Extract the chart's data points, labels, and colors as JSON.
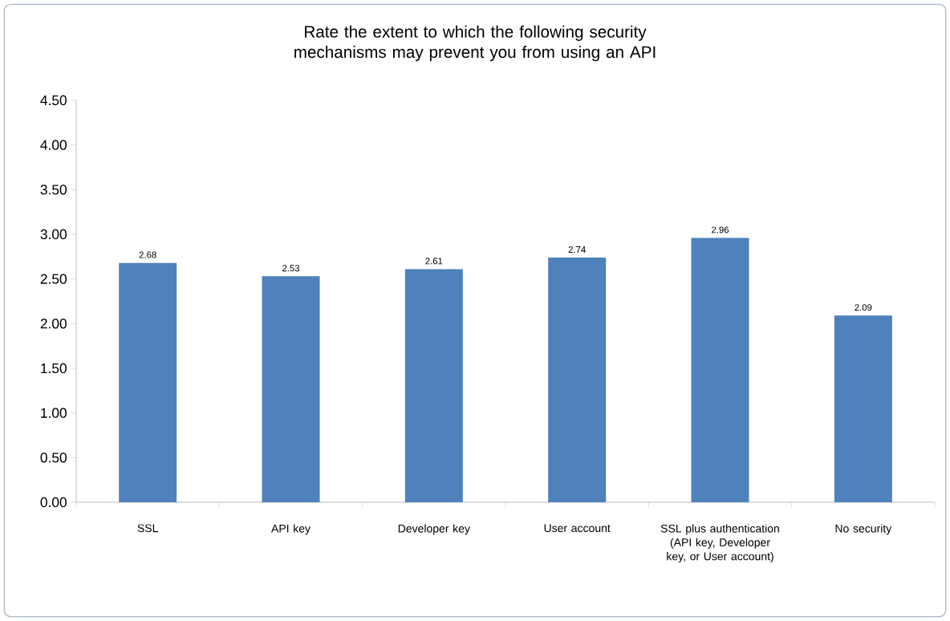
{
  "chart_data": {
    "type": "bar",
    "title": "Rate the extent to which the following security mechanisms may prevent you from using an API",
    "categories": [
      "SSL",
      "API key",
      "Developer key",
      "User account",
      "SSL plus authentication (API key, Developer key, or User account)",
      "No security"
    ],
    "values": [
      2.68,
      2.53,
      2.61,
      2.74,
      2.96,
      2.09
    ],
    "color": "#4f81bd",
    "ylim": [
      0,
      4.5
    ],
    "yticks": [
      {
        "value": 0,
        "label": "0.00"
      },
      {
        "value": 0.5,
        "label": "0.50"
      },
      {
        "value": 1,
        "label": "1.00"
      },
      {
        "value": 1.5,
        "label": "1.50"
      },
      {
        "value": 2,
        "label": "2.00"
      },
      {
        "value": 2.5,
        "label": "2.50"
      },
      {
        "value": 3,
        "label": "3.00"
      },
      {
        "value": 3.5,
        "label": "3.50"
      },
      {
        "value": 4,
        "label": "4.00"
      },
      {
        "value": 4.5,
        "label": "4.50"
      }
    ],
    "data_labels": true
  }
}
